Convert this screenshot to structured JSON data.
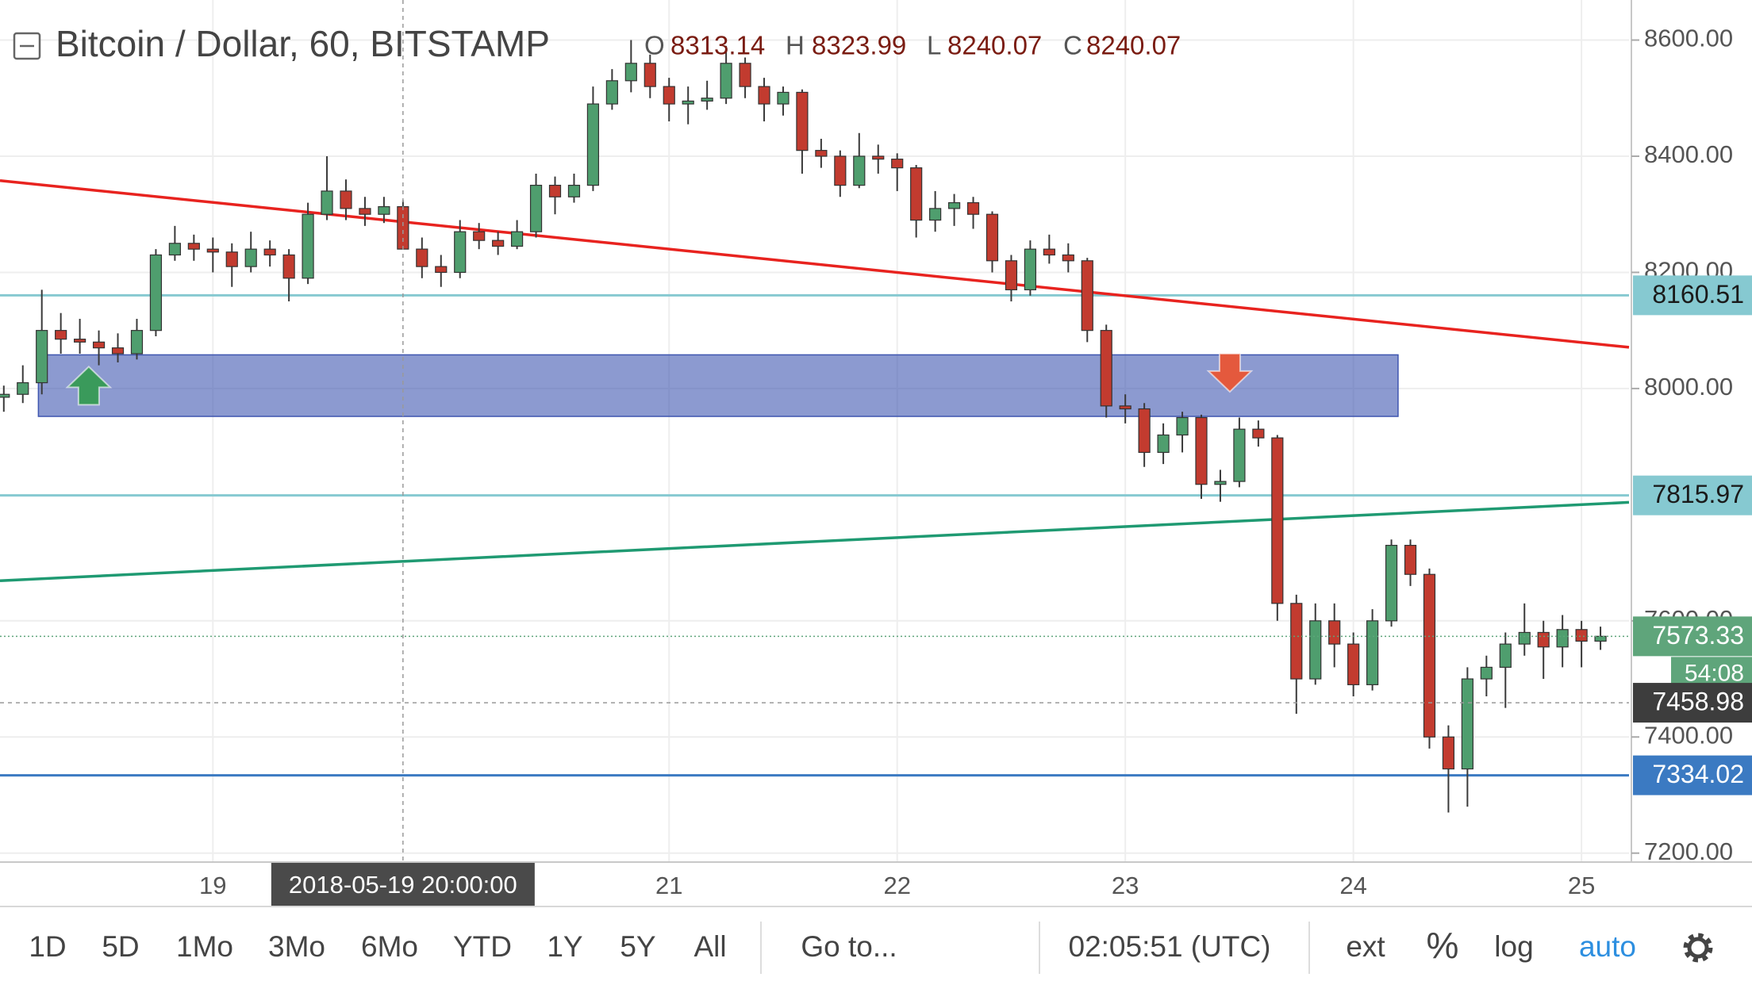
{
  "chart_data": {
    "type": "candlestick",
    "title": "Bitcoin / Dollar, 60, BITSTAMP",
    "header_labels": {
      "open": "O",
      "high": "H",
      "low": "L",
      "close": "C"
    },
    "up_color": "#4f9e6e",
    "down_color": "#c23b2f",
    "open": [
      7985,
      7990,
      8010,
      8100,
      8085,
      8080,
      8070,
      8060,
      8100,
      8230,
      8250,
      8240,
      8235,
      8210,
      8240,
      8230,
      8190,
      8300,
      8340,
      8310,
      8300,
      8313.14,
      8240.07,
      8210,
      8200,
      8270,
      8255,
      8245,
      8270,
      8350,
      8330,
      8350,
      8490,
      8530,
      8560,
      8520,
      8490,
      8495,
      8500,
      8560,
      8520,
      8490,
      8510,
      8410,
      8400,
      8350,
      8400,
      8395,
      8380,
      8290,
      8310,
      8320,
      8300,
      8220,
      8170,
      8240,
      8230,
      8220,
      8100,
      7970,
      7965,
      7890,
      7920,
      7950,
      7835,
      7840,
      7930,
      7915,
      7630,
      7500,
      7600,
      7560,
      7490,
      7600,
      7730,
      7680,
      7400,
      7345,
      7500,
      7520,
      7560,
      7580,
      7555,
      7585,
      7565
    ],
    "high": [
      8005,
      8040,
      8170,
      8130,
      8120,
      8100,
      8095,
      8120,
      8240,
      8280,
      8265,
      8260,
      8250,
      8270,
      8255,
      8240,
      8320,
      8400,
      8360,
      8330,
      8330,
      8323.99,
      8260,
      8230,
      8290,
      8285,
      8270,
      8290,
      8370,
      8365,
      8370,
      8520,
      8550,
      8600,
      8575,
      8535,
      8520,
      8530,
      8590,
      8570,
      8535,
      8520,
      8515,
      8430,
      8410,
      8440,
      8420,
      8405,
      8385,
      8340,
      8335,
      8330,
      8305,
      8230,
      8255,
      8265,
      8250,
      8225,
      8110,
      7990,
      7975,
      7940,
      7960,
      7955,
      7860,
      7950,
      7945,
      7920,
      7645,
      7630,
      7630,
      7580,
      7620,
      7740,
      7740,
      7690,
      7420,
      7520,
      7540,
      7580,
      7630,
      7600,
      7610,
      7600,
      7590
    ],
    "low": [
      7960,
      7975,
      7990,
      8060,
      8060,
      8040,
      8045,
      8050,
      8090,
      8220,
      8220,
      8200,
      8175,
      8200,
      8210,
      8150,
      8180,
      8290,
      8290,
      8280,
      8285,
      8240.07,
      8190,
      8175,
      8190,
      8240,
      8230,
      8240,
      8260,
      8300,
      8320,
      8340,
      8480,
      8510,
      8500,
      8460,
      8455,
      8480,
      8490,
      8500,
      8460,
      8470,
      8370,
      8380,
      8330,
      8345,
      8370,
      8340,
      8260,
      8270,
      8280,
      8275,
      8200,
      8150,
      8160,
      8215,
      8200,
      8080,
      7950,
      7940,
      7865,
      7870,
      7890,
      7810,
      7805,
      7830,
      7900,
      7600,
      7440,
      7490,
      7520,
      7470,
      7480,
      7590,
      7660,
      7380,
      7270,
      7280,
      7470,
      7450,
      7540,
      7500,
      7520,
      7520,
      7550
    ],
    "close": [
      7990,
      8010,
      8100,
      8085,
      8080,
      8070,
      8060,
      8100,
      8230,
      8250,
      8240,
      8235,
      8210,
      8240,
      8230,
      8190,
      8300,
      8340,
      8310,
      8300,
      8313.14,
      8240.07,
      8210,
      8200,
      8270,
      8255,
      8245,
      8270,
      8350,
      8330,
      8350,
      8490,
      8530,
      8560,
      8520,
      8490,
      8495,
      8500,
      8560,
      8520,
      8490,
      8510,
      8410,
      8400,
      8350,
      8400,
      8395,
      8380,
      8290,
      8310,
      8320,
      8300,
      8220,
      8170,
      8240,
      8230,
      8220,
      8100,
      7970,
      7965,
      7890,
      7920,
      7950,
      7835,
      7840,
      7930,
      7915,
      7630,
      7500,
      7600,
      7560,
      7490,
      7600,
      7730,
      7680,
      7400,
      7345,
      7500,
      7520,
      7560,
      7580,
      7555,
      7585,
      7565,
      7573.33
    ],
    "xlim": [
      -0.2,
      85.5
    ],
    "ylim": [
      7184.6,
      8669
    ],
    "yticks": [
      {
        "value": 8600,
        "label": "8600.00"
      },
      {
        "value": 8400,
        "label": "8400.00"
      },
      {
        "value": 8200,
        "label": "8200.00"
      },
      {
        "value": 8000,
        "label": "8000.00"
      },
      {
        "value": 7600,
        "label": "7600.00"
      },
      {
        "value": 7400,
        "label": "7400.00"
      },
      {
        "value": 7200,
        "label": "7200.00"
      }
    ],
    "xticks": [
      {
        "value": 11,
        "label": "19"
      },
      {
        "value": 35,
        "label": "21"
      },
      {
        "value": 47,
        "label": "22"
      },
      {
        "value": 59,
        "label": "23"
      },
      {
        "value": 71,
        "label": "24"
      },
      {
        "value": 83,
        "label": "25"
      }
    ],
    "grid": true,
    "crosshair": {
      "x": 21,
      "x_label": "2018-05-19 20:00:00",
      "y": 7458.98
    },
    "levels": [
      {
        "value": 8160.51,
        "color": "#86c9d1"
      },
      {
        "value": 7815.97,
        "color": "#86c9d1"
      },
      {
        "value": 7334.02,
        "color": "#3b7ac2"
      }
    ],
    "last_price_color": "#5fa57b",
    "countdown": "54:08",
    "drawings": {
      "trendlines": [
        {
          "color": "#e8231f",
          "points": [
            [
              -0.2,
              8358
            ],
            [
              85.5,
              8071
            ]
          ]
        },
        {
          "color": "#1f9a72",
          "points": [
            [
              -0.2,
              7669
            ],
            [
              85.5,
              7804
            ]
          ]
        }
      ],
      "zone": {
        "x": [
          1.82,
          73.35
        ],
        "y": [
          7952,
          8058
        ],
        "color": "#3f56b0"
      },
      "arrows": [
        {
          "direction": "up",
          "x": 4.47,
          "y": 8002,
          "color": "#3a9a5b"
        },
        {
          "direction": "down",
          "x": 64.5,
          "y": 8030,
          "color": "#e4593d"
        }
      ]
    }
  },
  "toolbar": {
    "ranges": [
      "1D",
      "5D",
      "1Mo",
      "3Mo",
      "6Mo",
      "YTD",
      "1Y",
      "5Y",
      "All"
    ],
    "goto": "Go to...",
    "clock": "02:05:51 (UTC)",
    "options": [
      "ext",
      "%",
      "log",
      "auto"
    ]
  }
}
